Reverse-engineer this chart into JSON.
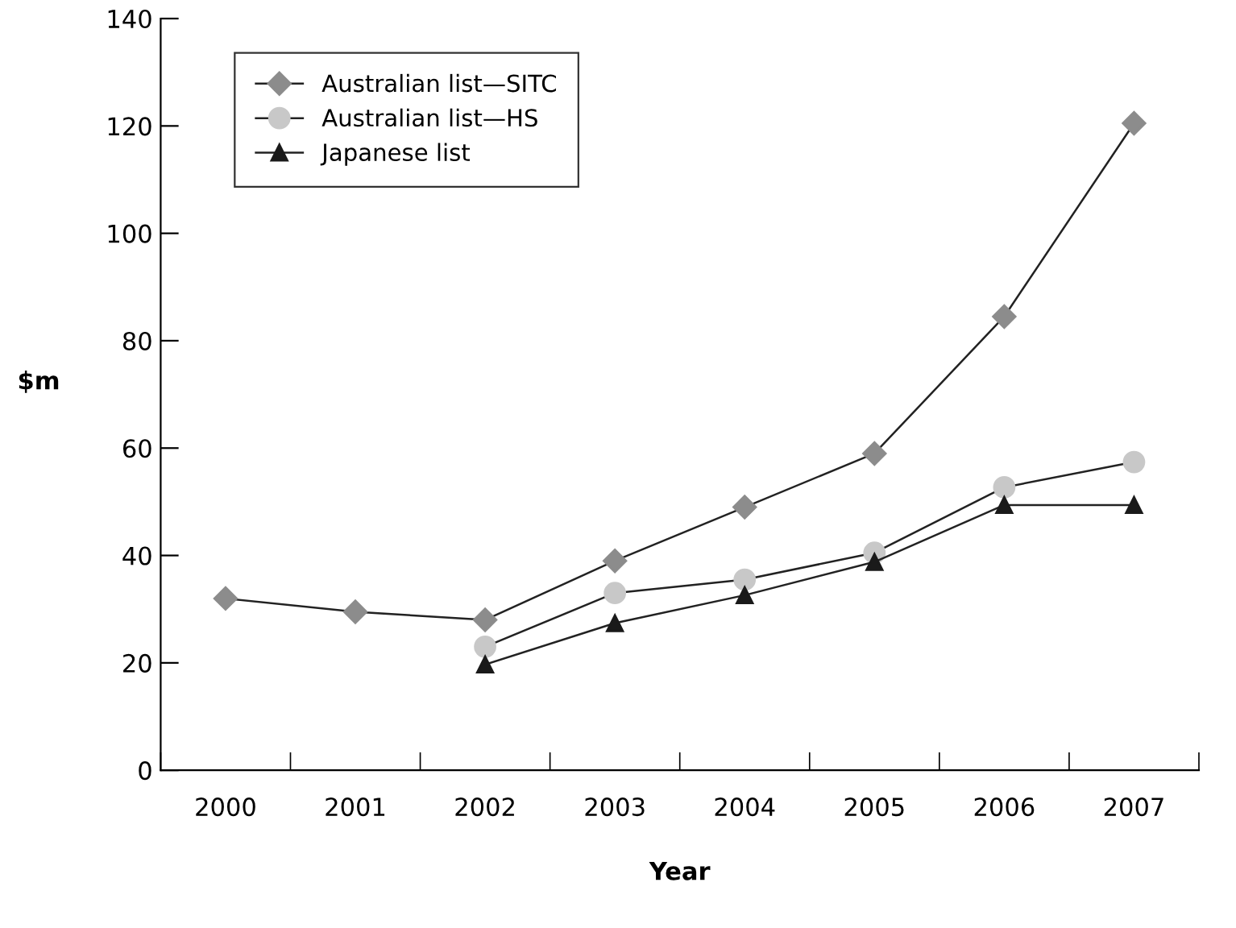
{
  "chart_data": {
    "type": "line",
    "xlabel": "Year",
    "ylabel": "$m",
    "categories": [
      "2000",
      "2001",
      "2002",
      "2003",
      "2004",
      "2005",
      "2006",
      "2007"
    ],
    "series": [
      {
        "name": "Australian list—SITC",
        "color": "#8c8c8c",
        "marker": "diamond",
        "values": [
          32,
          29.5,
          28,
          39,
          49,
          59,
          84.5,
          120.5
        ]
      },
      {
        "name": "Australian list—HS",
        "color": "#c8c8c8",
        "marker": "circle",
        "values": [
          null,
          null,
          23,
          33,
          35.5,
          40.5,
          52.7,
          57.4
        ]
      },
      {
        "name": "Japanese list",
        "color": "#1a1a1a",
        "marker": "triangle",
        "values": [
          null,
          null,
          19.7,
          27.4,
          32.6,
          38.8,
          49.4,
          49.4
        ]
      }
    ],
    "ylim": [
      0,
      140
    ],
    "yticks": [
      0,
      20,
      40,
      60,
      80,
      100,
      120,
      140
    ],
    "grid": false,
    "legend": "top left",
    "line_style": "solid"
  }
}
